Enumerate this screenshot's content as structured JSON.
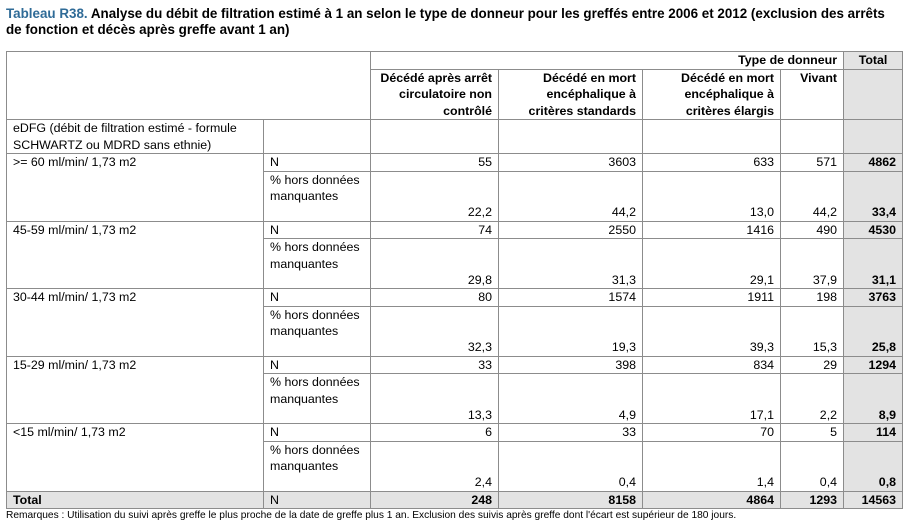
{
  "title": {
    "lead": "Tableau R38.",
    "text": " Analyse du débit de filtration estimé à 1 an selon le type de donneur pour les greffés entre 2006 et 2012 (exclusion des arrêts de fonction et décès après greffe avant 1 an)"
  },
  "header": {
    "group_label": "Type de donneur",
    "total_label": "Total",
    "columns": [
      "Décédé après arrêt circulatoire non contrôlé",
      "Décédé en mort encéphalique à critères standards",
      "Décédé en mort encéphalique à critères élargis",
      "Vivant"
    ]
  },
  "section_label": "eDFG (débit de filtration estimé - formule SCHWARTZ ou MDRD sans ethnie)",
  "n_label": "N",
  "pct_label": "% hors données manquantes",
  "groups": [
    {
      "label": ">= 60 ml/min/ 1,73 m2",
      "n": [
        "55",
        "3603",
        "633",
        "571"
      ],
      "n_total": "4862",
      "pct": [
        "22,2",
        "44,2",
        "13,0",
        "44,2"
      ],
      "pct_total": "33,4"
    },
    {
      "label": "45-59 ml/min/ 1,73 m2",
      "n": [
        "74",
        "2550",
        "1416",
        "490"
      ],
      "n_total": "4530",
      "pct": [
        "29,8",
        "31,3",
        "29,1",
        "37,9"
      ],
      "pct_total": "31,1"
    },
    {
      "label": "30-44 ml/min/ 1,73 m2",
      "n": [
        "80",
        "1574",
        "1911",
        "198"
      ],
      "n_total": "3763",
      "pct": [
        "32,3",
        "19,3",
        "39,3",
        "15,3"
      ],
      "pct_total": "25,8"
    },
    {
      "label": "15-29 ml/min/ 1,73 m2",
      "n": [
        "33",
        "398",
        "834",
        "29"
      ],
      "n_total": "1294",
      "pct": [
        "13,3",
        "4,9",
        "17,1",
        "2,2"
      ],
      "pct_total": "8,9"
    },
    {
      "label": "<15 ml/min/ 1,73 m2",
      "n": [
        "6",
        "33",
        "70",
        "5"
      ],
      "n_total": "114",
      "pct": [
        "2,4",
        "0,4",
        "1,4",
        "0,4"
      ],
      "pct_total": "0,8"
    }
  ],
  "total_row": {
    "label": "Total",
    "n_label": "N",
    "values": [
      "248",
      "8158",
      "4864",
      "1293"
    ],
    "total": "14563"
  },
  "note": "Remarques : Utilisation du suivi après greffe le plus proche de la date de greffe plus 1 an. Exclusion des suivis après greffe dont l'écart est supérieur de 180 jours.",
  "colors": {
    "title_lead": "#2f6b97",
    "total_column_bg": "#e3e3e3",
    "border": "#8c8c8c"
  }
}
